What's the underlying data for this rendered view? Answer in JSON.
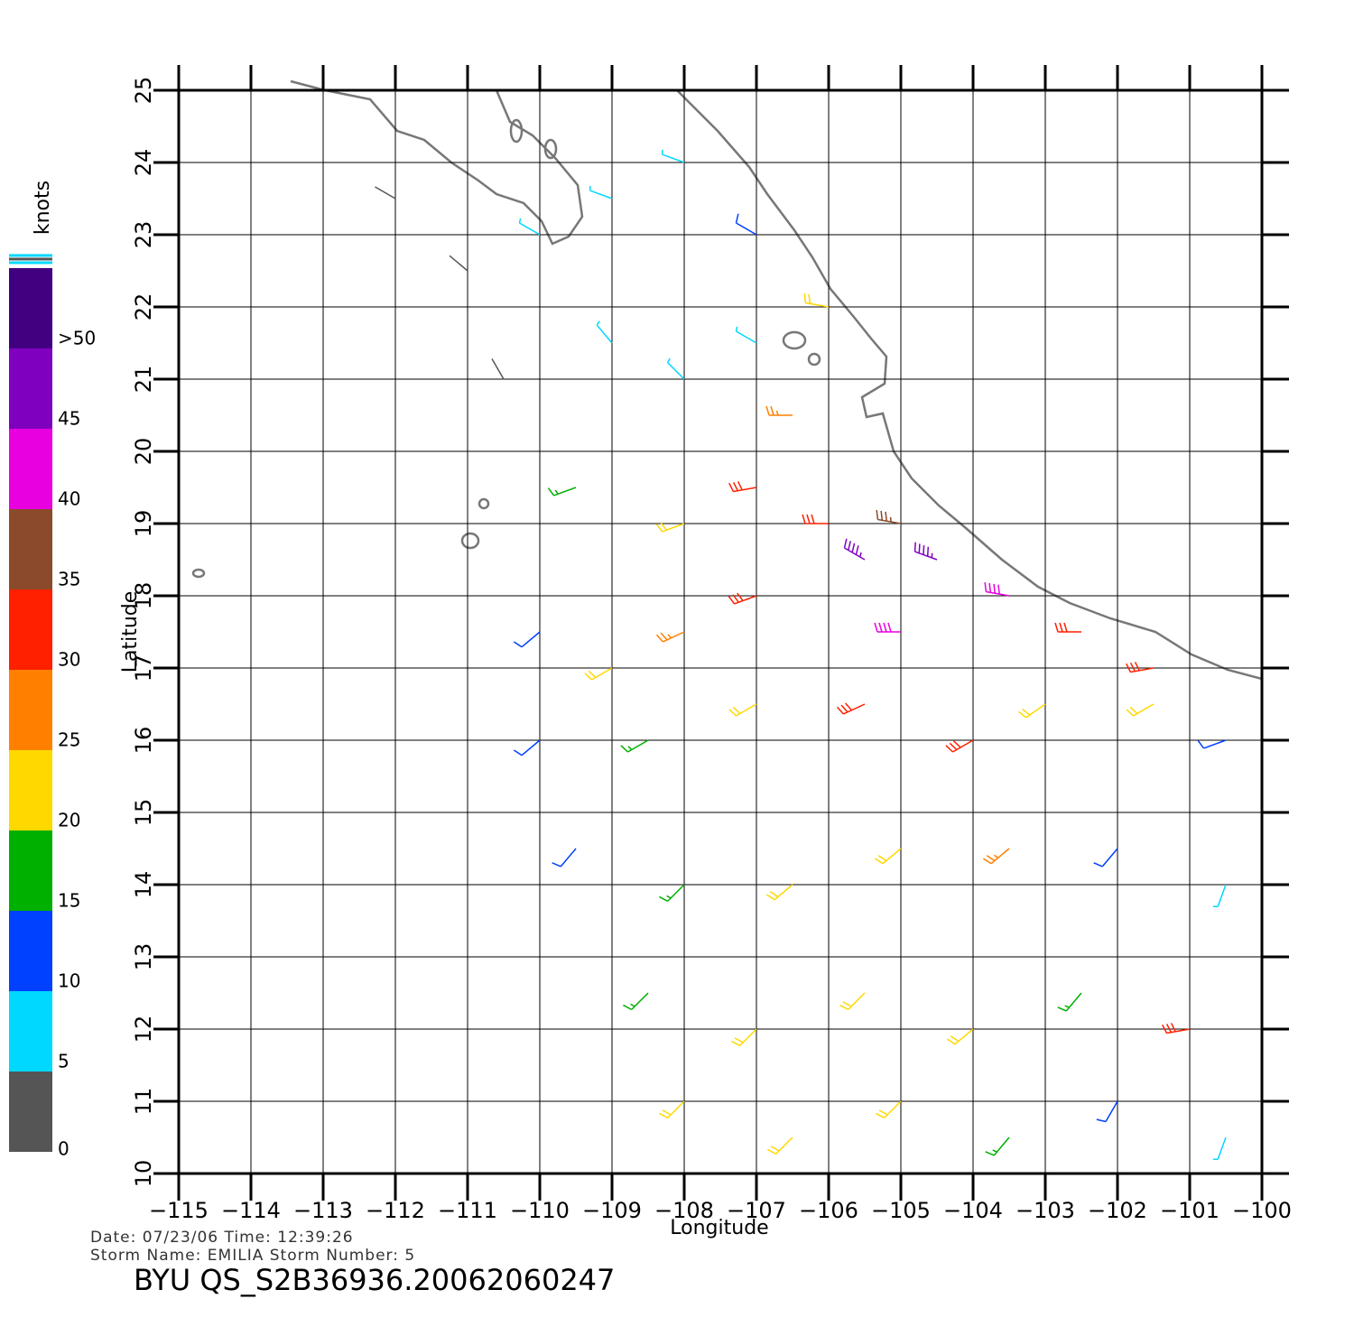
{
  "chart_data": {
    "type": "wind-barb-map",
    "xlabel": "Longitude",
    "ylabel": "Latitude",
    "xlim": [
      -115,
      -100
    ],
    "ylim": [
      10,
      25
    ],
    "xticks": [
      {
        "value": -115,
        "label": "−115"
      },
      {
        "value": -114,
        "label": "−114"
      },
      {
        "value": -113,
        "label": "−113"
      },
      {
        "value": -112,
        "label": "−112"
      },
      {
        "value": -111,
        "label": "−111"
      },
      {
        "value": -110,
        "label": "−110"
      },
      {
        "value": -109,
        "label": "−109"
      },
      {
        "value": -108,
        "label": "−108"
      },
      {
        "value": -107,
        "label": "−107"
      },
      {
        "value": -106,
        "label": "−106"
      },
      {
        "value": -105,
        "label": "−105"
      },
      {
        "value": -104,
        "label": "−104"
      },
      {
        "value": -103,
        "label": "−103"
      },
      {
        "value": -102,
        "label": "−102"
      },
      {
        "value": -101,
        "label": "−101"
      },
      {
        "value": -100,
        "label": "−100"
      }
    ],
    "yticks": [
      10,
      11,
      12,
      13,
      14,
      15,
      16,
      17,
      18,
      19,
      20,
      21,
      22,
      23,
      24,
      25
    ],
    "grid": true,
    "colorbar": {
      "label": "knots",
      "lim": [
        0,
        55
      ],
      "ticks": [
        0,
        5,
        10,
        15,
        20,
        25,
        30,
        35,
        40,
        45,
        {
          "value": 50,
          "label": ">50"
        }
      ],
      "colors": [
        "#555555",
        "#00d8ff",
        "#0040ff",
        "#00b000",
        "#ffd800",
        "#ff8000",
        "#ff2000",
        "#8b4a2b",
        "#e800e0",
        "#8000c0",
        "#400080"
      ]
    },
    "barbs": {
      "lon": [
        -112,
        -111,
        -110,
        -109,
        -108,
        -107,
        -110.5,
        -109,
        -108,
        -107,
        -106,
        -106.5,
        -109.5,
        -108,
        -107,
        -106,
        -105,
        -105.5,
        -104.5,
        -103.5,
        -105,
        -102.5,
        -101.5,
        -107,
        -108,
        -109,
        -110,
        -110,
        -108.5,
        -107,
        -105.5,
        -104,
        -103,
        -101.5,
        -100.5,
        -109.5,
        -108,
        -106.5,
        -105,
        -103.5,
        -102,
        -100.5,
        -108.5,
        -107,
        -105.5,
        -104,
        -102.5,
        -101,
        -108,
        -106.5,
        -105,
        -103.5,
        -102,
        -100.5
      ],
      "lat": [
        23.5,
        22.5,
        23,
        23.5,
        24,
        23,
        21,
        21.5,
        21,
        21.5,
        22,
        20.5,
        19.5,
        19,
        19.5,
        19,
        19,
        18.5,
        18.5,
        18,
        17.5,
        17.5,
        17,
        18,
        17.5,
        17,
        17.5,
        16,
        16,
        16.5,
        16.5,
        16,
        16.5,
        16.5,
        16,
        14.5,
        14,
        14,
        14.5,
        14.5,
        14.5,
        14,
        12.5,
        12,
        12.5,
        12,
        12.5,
        12,
        11,
        10.5,
        11,
        10.5,
        11,
        10.5
      ],
      "speed": [
        3,
        4,
        7,
        8,
        9,
        12,
        4,
        7,
        8,
        6,
        20,
        28,
        17,
        22,
        30,
        33,
        38,
        48,
        45,
        42,
        44,
        33,
        30,
        30,
        28,
        20,
        13,
        12,
        18,
        24,
        33,
        30,
        22,
        20,
        13,
        11,
        18,
        20,
        22,
        26,
        14,
        8,
        18,
        22,
        20,
        24,
        17,
        30,
        20,
        22,
        20,
        15,
        12,
        6
      ],
      "direction": [
        300,
        310,
        300,
        290,
        290,
        300,
        330,
        320,
        315,
        300,
        280,
        270,
        250,
        250,
        260,
        270,
        280,
        300,
        290,
        280,
        270,
        270,
        260,
        250,
        245,
        240,
        230,
        230,
        240,
        240,
        245,
        240,
        235,
        240,
        250,
        220,
        225,
        230,
        230,
        230,
        220,
        200,
        225,
        225,
        225,
        230,
        220,
        260,
        225,
        225,
        225,
        220,
        210,
        200
      ]
    }
  },
  "footer": {
    "line1": "Date: 07/23/06   Time: 12:39:26",
    "line2": "Storm  Name: EMILIA   Storm  Number: 5",
    "title": "BYU  QS_S2B36936.20062060247"
  }
}
